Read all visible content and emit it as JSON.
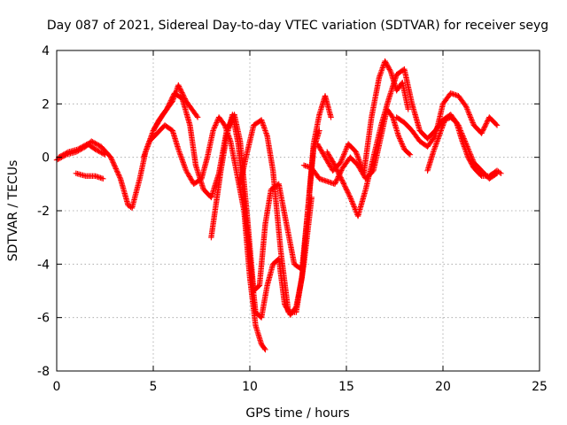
{
  "chart_data": {
    "type": "scatter",
    "title": "Day 087 of 2021, Sidereal Day-to-day VTEC variation (SDTVAR) for receiver seyg",
    "xlabel": "GPS time / hours",
    "ylabel": "SDTVAR / TECUs",
    "xlim": [
      0,
      25
    ],
    "ylim": [
      -8,
      4
    ],
    "xticks": [
      0,
      5,
      10,
      15,
      20,
      25
    ],
    "yticks": [
      -8,
      -6,
      -4,
      -2,
      0,
      2,
      4
    ],
    "grid": true,
    "marker": "+",
    "color": "#ff0000",
    "series": [
      {
        "x": [
          0,
          0.5,
          1.0,
          1.5,
          1.8,
          2.3,
          2.8,
          3.3,
          3.7,
          3.9,
          4.3,
          4.6,
          5.0,
          5.5,
          6.0,
          6.3,
          6.7,
          7.0,
          7.3
        ],
        "y": [
          -0.1,
          0.1,
          0.2,
          0.4,
          0.6,
          0.4,
          0.0,
          -0.8,
          -1.8,
          -1.9,
          -0.8,
          0.2,
          1.0,
          1.6,
          2.1,
          2.7,
          2.1,
          1.8,
          1.5
        ]
      },
      {
        "x": [
          0.1,
          0.6,
          1.1,
          1.6,
          2.0,
          2.5
        ],
        "y": [
          0.0,
          0.2,
          0.3,
          0.5,
          0.3,
          0.1
        ]
      },
      {
        "x": [
          1.0,
          1.5,
          2.0,
          2.4
        ],
        "y": [
          -0.6,
          -0.7,
          -0.7,
          -0.8
        ]
      },
      {
        "x": [
          4.5,
          4.8,
          5.2,
          5.6,
          6.0,
          6.3,
          6.7,
          7.1,
          7.5,
          7.8,
          8.1,
          8.4,
          8.7,
          9.0,
          9.3,
          9.7,
          10.0,
          10.3,
          10.6,
          10.8
        ],
        "y": [
          0.0,
          0.6,
          0.9,
          1.2,
          1.0,
          0.3,
          -0.5,
          -1.0,
          -0.8,
          0.0,
          1.0,
          1.5,
          1.2,
          0.6,
          -0.5,
          -2.0,
          -4.5,
          -6.3,
          -7.0,
          -7.2
        ]
      },
      {
        "x": [
          5.0,
          5.3,
          5.7,
          6.1,
          6.5,
          6.9,
          7.2,
          7.6,
          8.0,
          8.4,
          8.8,
          9.2,
          9.5,
          9.9,
          10.2,
          10.5,
          10.8,
          11.1,
          11.5,
          11.9,
          12.3,
          12.7,
          13.0,
          13.3,
          13.6,
          13.9,
          14.2
        ],
        "y": [
          1.0,
          1.4,
          1.8,
          2.4,
          2.2,
          1.2,
          -0.3,
          -1.2,
          -1.5,
          -0.6,
          1.0,
          1.6,
          0.6,
          -2.5,
          -5.0,
          -4.8,
          -2.5,
          -1.2,
          -1.0,
          -2.5,
          -4.0,
          -4.2,
          -2.0,
          0.5,
          1.6,
          2.3,
          1.5
        ]
      },
      {
        "x": [
          8.0,
          8.2,
          8.5,
          8.8,
          9.1,
          9.4,
          9.7,
          10.0,
          10.3,
          10.6,
          10.9,
          11.2,
          11.5,
          11.8,
          12.1,
          12.4,
          12.7,
          13.0,
          13.3,
          13.6
        ],
        "y": [
          -3.0,
          -2.0,
          -0.5,
          0.8,
          1.6,
          0.5,
          -1.5,
          -3.8,
          -5.8,
          -6.0,
          -4.8,
          -4.0,
          -3.8,
          -5.5,
          -5.9,
          -5.6,
          -4.5,
          -2.0,
          0.3,
          1.0
        ]
      },
      {
        "x": [
          9.5,
          9.8,
          10.2,
          10.6,
          10.9,
          11.2,
          11.6,
          12.0,
          12.4,
          12.8,
          13.2
        ],
        "y": [
          -1.0,
          0.0,
          1.2,
          1.4,
          0.8,
          -0.5,
          -3.5,
          -5.8,
          -5.8,
          -4.0,
          -1.5
        ]
      },
      {
        "x": [
          12.8,
          13.2,
          13.6,
          14.0,
          14.4,
          14.8,
          15.2,
          15.6,
          16.0,
          16.4,
          16.8,
          17.1,
          17.4,
          17.7,
          18.0,
          18.3
        ],
        "y": [
          -0.3,
          -0.4,
          -0.8,
          -0.9,
          -1.0,
          -0.4,
          0.0,
          -0.3,
          -0.8,
          -0.5,
          0.8,
          1.8,
          1.5,
          0.8,
          0.3,
          0.1
        ]
      },
      {
        "x": [
          13.5,
          13.9,
          14.3,
          14.7,
          15.1,
          15.5,
          15.9,
          16.3,
          16.7,
          17.0,
          17.3,
          17.6,
          17.9,
          18.2
        ],
        "y": [
          0.5,
          0.0,
          -0.5,
          -0.2,
          0.5,
          0.2,
          -0.6,
          1.5,
          3.0,
          3.6,
          3.2,
          2.5,
          2.8,
          1.8
        ]
      },
      {
        "x": [
          14.0,
          14.4,
          14.8,
          15.2,
          15.6,
          16.0,
          16.4,
          16.8,
          17.2,
          17.6,
          18.0,
          18.4,
          18.8,
          19.2,
          19.6,
          20.0,
          20.4,
          20.8,
          21.2,
          21.6,
          22.0,
          22.4,
          22.8
        ],
        "y": [
          0.2,
          -0.3,
          -0.9,
          -1.5,
          -2.2,
          -1.2,
          0.0,
          1.2,
          2.2,
          3.1,
          3.3,
          2.0,
          1.0,
          0.7,
          1.0,
          1.4,
          1.6,
          1.2,
          0.5,
          -0.2,
          -0.5,
          -0.8,
          -0.6
        ]
      },
      {
        "x": [
          17.6,
          18.0,
          18.4,
          18.8,
          19.2,
          19.6,
          20.0,
          20.4,
          20.8,
          21.2,
          21.6,
          22.0,
          22.4,
          22.8
        ],
        "y": [
          1.5,
          1.3,
          1.0,
          0.6,
          0.4,
          0.8,
          2.0,
          2.4,
          2.3,
          1.9,
          1.2,
          0.9,
          1.5,
          1.2
        ]
      },
      {
        "x": [
          19.2,
          19.5,
          19.8,
          20.1,
          20.4,
          20.7,
          21.0,
          21.3,
          21.6,
          22.0,
          22.4,
          22.8,
          23.0
        ],
        "y": [
          -0.5,
          0.2,
          0.8,
          1.4,
          1.5,
          1.3,
          0.6,
          0.0,
          -0.4,
          -0.7,
          -0.7,
          -0.5,
          -0.6
        ]
      }
    ]
  }
}
